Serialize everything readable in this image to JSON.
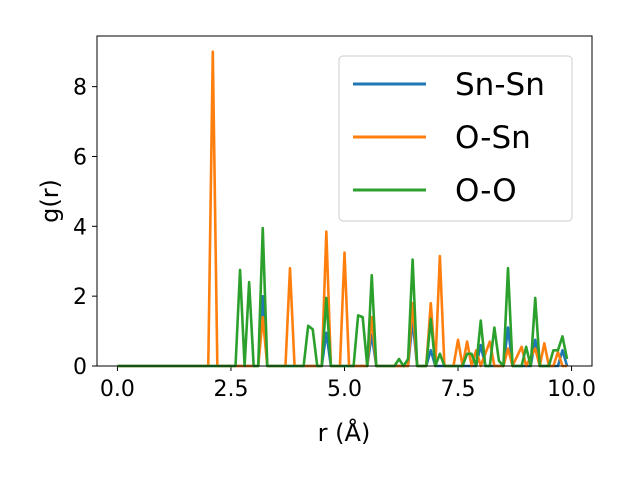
{
  "chart_data": {
    "type": "line",
    "xlabel": "r (Å)",
    "ylabel": "g(r)",
    "xlim": [
      -0.45,
      10.45
    ],
    "ylim": [
      0,
      9.45
    ],
    "xticks": [
      0.0,
      2.5,
      5.0,
      7.5,
      10.0
    ],
    "xtick_labels": [
      "0.0",
      "2.5",
      "5.0",
      "7.5",
      "10.0"
    ],
    "yticks": [
      0,
      2,
      4,
      6,
      8
    ],
    "ytick_labels": [
      "0",
      "2",
      "4",
      "6",
      "8"
    ],
    "grid": false,
    "legend_position": "upper right",
    "series": [
      {
        "name": "Sn-Sn",
        "color": "#1f77b4",
        "points": [
          [
            0.0,
            0
          ],
          [
            2.9,
            0
          ],
          [
            3.1,
            0
          ],
          [
            3.2,
            2.0
          ],
          [
            3.3,
            0
          ],
          [
            4.4,
            0
          ],
          [
            4.5,
            0
          ],
          [
            4.6,
            0.95
          ],
          [
            4.7,
            0
          ],
          [
            5.5,
            0
          ],
          [
            5.6,
            0.9
          ],
          [
            5.7,
            0
          ],
          [
            6.3,
            0
          ],
          [
            6.4,
            0
          ],
          [
            6.5,
            1.3
          ],
          [
            6.6,
            0
          ],
          [
            6.8,
            0
          ],
          [
            6.9,
            0.45
          ],
          [
            7.0,
            0
          ],
          [
            7.9,
            0
          ],
          [
            8.0,
            0.6
          ],
          [
            8.1,
            0
          ],
          [
            8.5,
            0
          ],
          [
            8.6,
            1.1
          ],
          [
            8.7,
            0
          ],
          [
            9.1,
            0
          ],
          [
            9.2,
            0.75
          ],
          [
            9.3,
            0
          ],
          [
            9.7,
            0
          ],
          [
            9.8,
            0.45
          ],
          [
            9.9,
            0
          ]
        ]
      },
      {
        "name": "O-Sn",
        "color": "#ff7f0e",
        "points": [
          [
            0.0,
            0
          ],
          [
            2.0,
            0
          ],
          [
            2.1,
            9.0
          ],
          [
            2.2,
            0
          ],
          [
            3.1,
            0
          ],
          [
            3.2,
            1.4
          ],
          [
            3.3,
            0
          ],
          [
            3.7,
            0
          ],
          [
            3.8,
            2.8
          ],
          [
            3.9,
            0
          ],
          [
            4.5,
            0
          ],
          [
            4.6,
            3.85
          ],
          [
            4.7,
            0
          ],
          [
            4.9,
            0
          ],
          [
            5.0,
            3.25
          ],
          [
            5.1,
            0
          ],
          [
            5.5,
            0
          ],
          [
            5.6,
            1.4
          ],
          [
            5.7,
            0
          ],
          [
            6.4,
            0
          ],
          [
            6.5,
            1.8
          ],
          [
            6.6,
            0
          ],
          [
            6.8,
            0
          ],
          [
            6.9,
            1.8
          ],
          [
            7.0,
            0
          ],
          [
            7.1,
            3.15
          ],
          [
            7.2,
            0
          ],
          [
            7.4,
            0
          ],
          [
            7.5,
            0.75
          ],
          [
            7.6,
            0
          ],
          [
            7.7,
            0.7
          ],
          [
            7.8,
            0
          ],
          [
            7.9,
            0.45
          ],
          [
            8.0,
            0
          ],
          [
            8.2,
            0.7
          ],
          [
            8.3,
            0
          ],
          [
            8.5,
            0
          ],
          [
            8.6,
            0.5
          ],
          [
            8.7,
            0
          ],
          [
            8.9,
            0.55
          ],
          [
            9.0,
            0
          ],
          [
            9.2,
            0.5
          ],
          [
            9.3,
            0
          ],
          [
            9.4,
            0.65
          ],
          [
            9.5,
            0
          ],
          [
            9.6,
            0
          ],
          [
            9.7,
            0.4
          ],
          [
            9.8,
            0
          ],
          [
            9.9,
            0
          ]
        ]
      },
      {
        "name": "O-O",
        "color": "#2ca02c",
        "points": [
          [
            0.0,
            0
          ],
          [
            2.6,
            0
          ],
          [
            2.7,
            2.75
          ],
          [
            2.8,
            0
          ],
          [
            2.9,
            2.4
          ],
          [
            3.0,
            0
          ],
          [
            3.1,
            0
          ],
          [
            3.2,
            3.95
          ],
          [
            3.3,
            0
          ],
          [
            4.1,
            0
          ],
          [
            4.2,
            1.15
          ],
          [
            4.3,
            1.05
          ],
          [
            4.4,
            0
          ],
          [
            4.5,
            0
          ],
          [
            4.6,
            1.95
          ],
          [
            4.7,
            0
          ],
          [
            5.2,
            0
          ],
          [
            5.3,
            1.45
          ],
          [
            5.4,
            1.4
          ],
          [
            5.5,
            0
          ],
          [
            5.6,
            2.6
          ],
          [
            5.7,
            0
          ],
          [
            6.1,
            0
          ],
          [
            6.2,
            0.2
          ],
          [
            6.3,
            0
          ],
          [
            6.4,
            0.2
          ],
          [
            6.5,
            3.05
          ],
          [
            6.6,
            0
          ],
          [
            6.8,
            0
          ],
          [
            6.9,
            1.35
          ],
          [
            7.0,
            0
          ],
          [
            7.1,
            0.35
          ],
          [
            7.2,
            0
          ],
          [
            7.6,
            0
          ],
          [
            7.7,
            0.35
          ],
          [
            7.8,
            0.35
          ],
          [
            7.9,
            0
          ],
          [
            8.0,
            1.3
          ],
          [
            8.1,
            0
          ],
          [
            8.2,
            0
          ],
          [
            8.3,
            1.1
          ],
          [
            8.4,
            0.15
          ],
          [
            8.5,
            0
          ],
          [
            8.6,
            2.8
          ],
          [
            8.7,
            0
          ],
          [
            8.9,
            0
          ],
          [
            9.0,
            0.55
          ],
          [
            9.1,
            0
          ],
          [
            9.2,
            1.95
          ],
          [
            9.3,
            0
          ],
          [
            9.5,
            0
          ],
          [
            9.6,
            0.45
          ],
          [
            9.7,
            0.45
          ],
          [
            9.8,
            0.85
          ],
          [
            9.9,
            0.2
          ]
        ]
      }
    ]
  }
}
